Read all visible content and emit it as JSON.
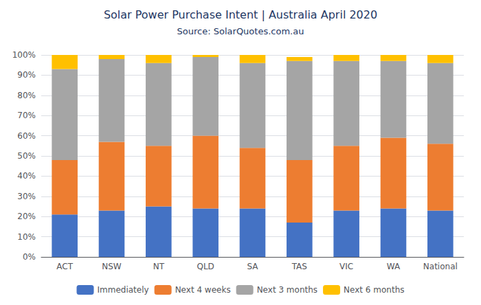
{
  "chart_data": {
    "type": "bar",
    "title": "Solar Power Purchase Intent | Australia April 2020",
    "subtitle": "Source: SolarQuotes.com.au",
    "categories": [
      "ACT",
      "NSW",
      "NT",
      "QLD",
      "SA",
      "TAS",
      "VIC",
      "WA",
      "National"
    ],
    "series": [
      {
        "name": "Immediately",
        "color": "#4472C4",
        "values": [
          21,
          23,
          25,
          24,
          24,
          17,
          23,
          24,
          23
        ]
      },
      {
        "name": "Next 4 weeks",
        "color": "#ED7D31",
        "values": [
          27,
          34,
          30,
          36,
          30,
          31,
          32,
          35,
          33
        ]
      },
      {
        "name": "Next 3 months",
        "color": "#A5A5A5",
        "values": [
          45,
          41,
          41,
          39,
          42,
          49,
          42,
          38,
          40
        ]
      },
      {
        "name": "Next 6 months",
        "color": "#FFC000",
        "values": [
          7,
          2,
          4,
          1,
          4,
          2,
          3,
          3,
          4
        ]
      }
    ],
    "stacked": true,
    "ylim": [
      0,
      100
    ],
    "yticks": [
      {
        "value": 0,
        "label": "0%"
      },
      {
        "value": 10,
        "label": "10%"
      },
      {
        "value": 20,
        "label": "20%"
      },
      {
        "value": 30,
        "label": "30%"
      },
      {
        "value": 40,
        "label": "40%"
      },
      {
        "value": 50,
        "label": "50%"
      },
      {
        "value": 60,
        "label": "60%"
      },
      {
        "value": 70,
        "label": "70%"
      },
      {
        "value": 80,
        "label": "80%"
      },
      {
        "value": 90,
        "label": "90%"
      },
      {
        "value": 100,
        "label": "100%"
      }
    ],
    "grid": true,
    "legend": "lower center"
  }
}
